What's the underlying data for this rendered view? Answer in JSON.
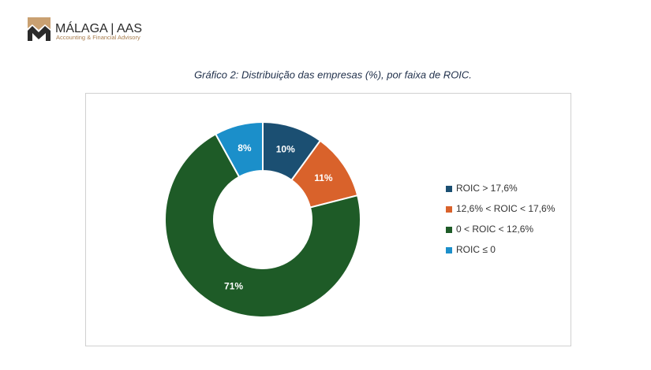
{
  "header": {
    "logo_title": "MÁLAGA | AAS",
    "logo_subtitle": "Accounting & Financial Advisory"
  },
  "chart_data": {
    "type": "donut",
    "title": "Gráfico 2: Distribuição das empresas (%), por faixa de ROIC.",
    "categories": [
      "ROIC > 17,6%",
      "12,6% < ROIC < 17,6%",
      "0 < ROIC < 12,6%",
      "ROIC ≤ 0"
    ],
    "values": [
      10,
      11,
      71,
      8
    ],
    "value_labels": [
      "10%",
      "11%",
      "71%",
      "8%"
    ],
    "colors": [
      "#1b4f72",
      "#d9622b",
      "#1e5b27",
      "#1b8fca"
    ],
    "legend": "right"
  }
}
